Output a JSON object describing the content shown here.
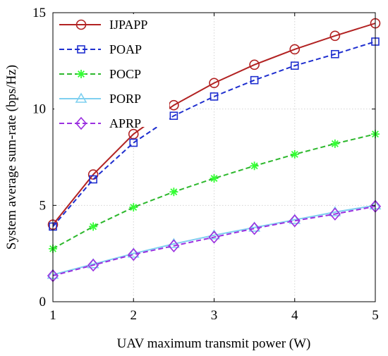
{
  "chart_data": {
    "type": "line",
    "title": "",
    "xlabel": "UAV maximum transmit power (W)",
    "ylabel": "System average sum-rate (bps/Hz)",
    "xlim": [
      1,
      5
    ],
    "ylim": [
      0,
      15
    ],
    "xticks": [
      "1",
      "2",
      "3",
      "4",
      "5"
    ],
    "yticks": [
      "0",
      "5",
      "10",
      "15"
    ],
    "grid": true,
    "legend_position": "top-left",
    "x": [
      1,
      1.5,
      2,
      2.5,
      3,
      3.5,
      4,
      4.5,
      5
    ],
    "series": [
      {
        "name": "IJPAPP",
        "color": "#b22222",
        "dash": "solid",
        "marker": "circle",
        "values": [
          4.0,
          6.6,
          8.7,
          10.2,
          11.35,
          12.3,
          13.1,
          13.8,
          14.45
        ]
      },
      {
        "name": "POAP",
        "color": "#1f2fcf",
        "dash": "dashed",
        "marker": "square",
        "values": [
          3.9,
          6.35,
          8.25,
          9.65,
          10.65,
          11.5,
          12.25,
          12.85,
          13.5
        ]
      },
      {
        "name": "POCP",
        "color": "#2db82d",
        "dash": "dashed",
        "marker": "asterisk",
        "marker_color": "#33ff33",
        "values": [
          2.75,
          3.9,
          4.9,
          5.7,
          6.4,
          7.05,
          7.65,
          8.2,
          8.7
        ]
      },
      {
        "name": "PORP",
        "color": "#7fd0f0",
        "dash": "solid",
        "marker": "triangle",
        "values": [
          1.4,
          1.95,
          2.5,
          3.0,
          3.45,
          3.85,
          4.25,
          4.65,
          5.0
        ]
      },
      {
        "name": "APRP",
        "color": "#9b30e0",
        "dash": "dashed",
        "marker": "diamond",
        "values": [
          1.35,
          1.9,
          2.45,
          2.9,
          3.35,
          3.8,
          4.2,
          4.55,
          4.95
        ]
      }
    ]
  }
}
